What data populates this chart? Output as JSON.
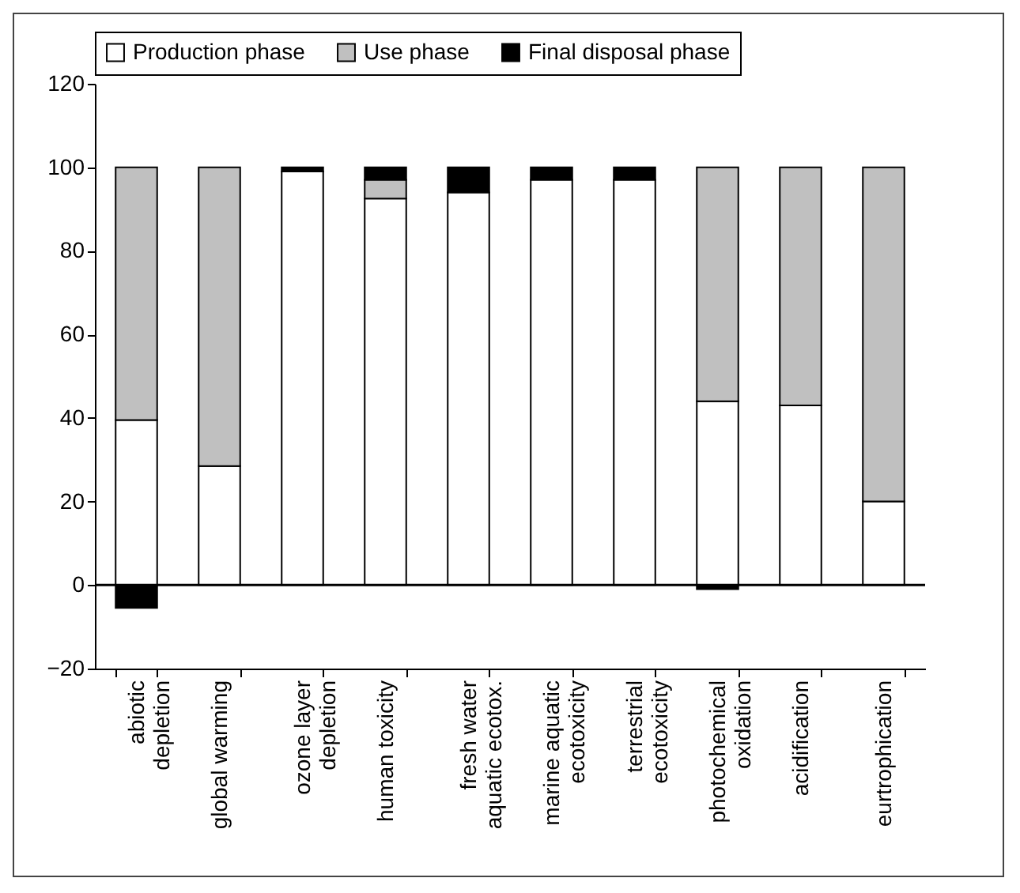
{
  "chart_data": {
    "type": "bar",
    "stacked": true,
    "categories": [
      "abiotic\ndepletion",
      "global warming",
      "ozone layer\ndepletion",
      "human toxicity",
      "fresh water\naquatic ecotox.",
      "marine aquatic\necotoxicity",
      "terrestrial\necotoxicity",
      "photochemical\noxidation",
      "acidification",
      "eurtrophication"
    ],
    "series": [
      {
        "name": "Production phase",
        "color": "#ffffff",
        "values": [
          39.5,
          28.5,
          99,
          92.5,
          94,
          97,
          97,
          44,
          43,
          20
        ]
      },
      {
        "name": "Use phase",
        "color": "#c0c0c0",
        "values": [
          60.5,
          71.5,
          null,
          4.5,
          null,
          null,
          null,
          56,
          57,
          80
        ]
      },
      {
        "name": "Final disposal phase",
        "color": "#000000",
        "values": [
          -5.5,
          null,
          1,
          3,
          6,
          3,
          3,
          -1,
          null,
          null
        ]
      }
    ],
    "ylim": [
      -20,
      120
    ],
    "yticks": [
      -20,
      0,
      20,
      40,
      60,
      80,
      100,
      120
    ],
    "ref_lines": [
      {
        "axis": "y",
        "value": 0,
        "color": "#000000"
      }
    ],
    "grid": false,
    "legend": "top"
  }
}
